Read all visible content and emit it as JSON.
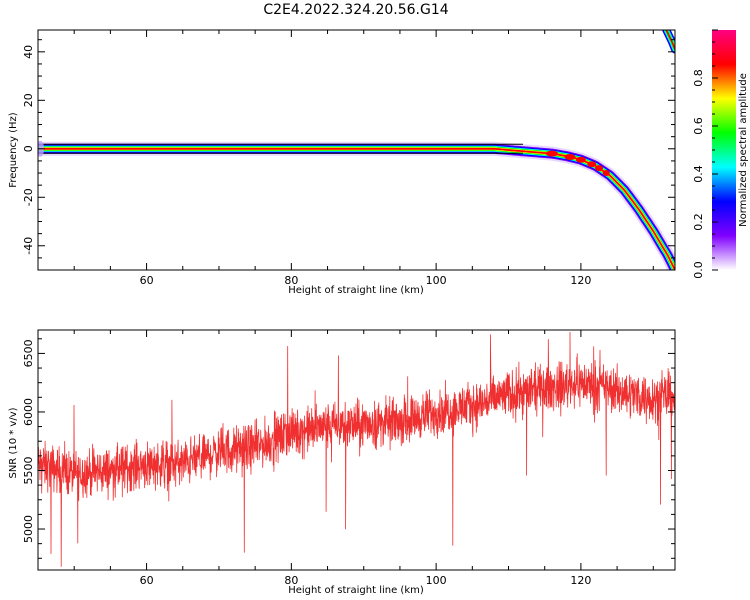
{
  "title": "C2E4.2022.324.20.56.G14",
  "chart_data": [
    {
      "type": "heatmap",
      "xlabel": "Height of straight line (km)",
      "ylabel": "Frequency (Hz)",
      "xlim": [
        45,
        133
      ],
      "ylim": [
        -50,
        49
      ],
      "xticks": [
        "60",
        "80",
        "100",
        "120"
      ],
      "xtick_values": [
        60,
        80,
        100,
        120
      ],
      "yticks": [
        "40",
        "20",
        "0",
        "-20",
        "-40"
      ],
      "ytick_values": [
        40,
        20,
        0,
        -20,
        -40
      ],
      "ridge": {
        "x": [
          45,
          60,
          80,
          100,
          108,
          112,
          114,
          116,
          118,
          120,
          122,
          124,
          126,
          128,
          130,
          132,
          133
        ],
        "y": [
          0,
          0,
          0,
          0,
          0,
          -1,
          -1.5,
          -2,
          -3,
          -4.5,
          -7,
          -11,
          -17,
          -25,
          -34,
          -44,
          -50
        ]
      },
      "ridge_upper_edge": {
        "x": [
          131.8,
          132.6,
          133
        ],
        "y": [
          49,
          44,
          41
        ]
      },
      "colorbar": {
        "label": "Normalized spectral amplitude",
        "range": [
          0,
          1
        ],
        "ticks": [
          "0.0",
          "0.2",
          "0.4",
          "0.6",
          "0.8"
        ],
        "tick_values": [
          0,
          0.2,
          0.4,
          0.6,
          0.8
        ],
        "colors": [
          "#ffffff",
          "#8000ff",
          "#0000ff",
          "#00ffff",
          "#00ff00",
          "#ffff00",
          "#ff0000",
          "#ff0080"
        ]
      },
      "grid": false
    },
    {
      "type": "line",
      "xlabel": "Height of straight line (km)",
      "ylabel": "SNR (10 * v/v)",
      "xlim": [
        45,
        133
      ],
      "ylim": [
        4650,
        6700
      ],
      "xticks": [
        "60",
        "80",
        "100",
        "120"
      ],
      "xtick_values": [
        60,
        80,
        100,
        120
      ],
      "yticks": [
        "6500",
        "6000",
        "5500",
        "5000"
      ],
      "ytick_values": [
        6500,
        6000,
        5500,
        5000
      ],
      "series": [
        {
          "color": "#f03030",
          "trend": {
            "x": [
              45,
              50,
              55,
              60,
              65,
              70,
              75,
              80,
              85,
              90,
              95,
              100,
              105,
              110,
              115,
              120,
              125,
              130,
              133
            ],
            "y": [
              5550,
              5470,
              5500,
              5560,
              5560,
              5660,
              5700,
              5820,
              5880,
              5890,
              5920,
              6000,
              6050,
              6150,
              6200,
              6250,
              6180,
              6120,
              6130
            ]
          },
          "noise_amplitude": 120,
          "spikes_down": [
            {
              "x": 46.8,
              "y": 4790
            },
            {
              "x": 48.2,
              "y": 4680
            },
            {
              "x": 50.5,
              "y": 4880
            },
            {
              "x": 73.5,
              "y": 4800
            },
            {
              "x": 79.5,
              "y": 5150
            },
            {
              "x": 84.8,
              "y": 5150
            },
            {
              "x": 87.5,
              "y": 5000
            },
            {
              "x": 102.3,
              "y": 4860
            },
            {
              "x": 112.5,
              "y": 5460
            },
            {
              "x": 123.5,
              "y": 5460
            },
            {
              "x": 131.0,
              "y": 5210
            },
            {
              "x": 132.5,
              "y": 5430
            }
          ],
          "spikes_up": [
            {
              "x": 63.5,
              "y": 6100
            },
            {
              "x": 79.5,
              "y": 6560
            },
            {
              "x": 86.5,
              "y": 6480
            },
            {
              "x": 107.5,
              "y": 6660
            },
            {
              "x": 118.5,
              "y": 6680
            },
            {
              "x": 115.5,
              "y": 6620
            }
          ]
        }
      ],
      "grid": false
    }
  ]
}
